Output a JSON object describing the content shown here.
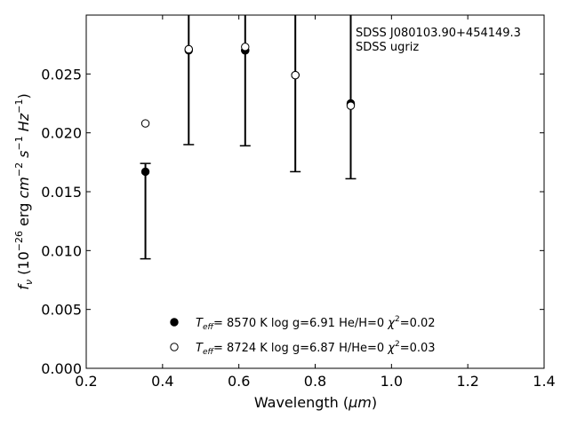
{
  "chart_data": {
    "type": "scatter",
    "xlabel": "Wavelength (μm)",
    "ylabel": "f_ν (10^-26 erg cm^-2 s^-1 Hz^-1)",
    "xlim": [
      0.2,
      1.4
    ],
    "ylim": [
      0.0,
      0.03
    ],
    "xticks": [
      "0.2",
      "0.4",
      "0.6",
      "0.8",
      "1.0",
      "1.2",
      "1.4"
    ],
    "yticks": [
      "0.000",
      "0.005",
      "0.010",
      "0.015",
      "0.020",
      "0.025"
    ],
    "annotation": [
      "SDSS J080103.90+454149.3",
      "SDSS ugriz"
    ],
    "grid": false,
    "legend_position": "lower-center",
    "observed": {
      "x": [
        0.3551,
        0.4686,
        0.6166,
        0.748,
        0.8932
      ],
      "y": [
        0.0167,
        0.0271,
        0.027,
        0.0249,
        0.0225
      ],
      "err_low": [
        0.0093,
        0.019,
        0.0189,
        0.0167,
        0.0161
      ],
      "err_high": [
        0.0174,
        0.05,
        0.05,
        0.05,
        0.05
      ]
    },
    "series": [
      {
        "marker": "filled-circle",
        "label": {
          "teff": "T",
          "teff_sub": "eff",
          "text": "=  8570 K  log g=6.91  He/H=0  ",
          "chi": "χ",
          "chi_val": "=0.02"
        },
        "x": [
          0.4686,
          0.6166,
          0.748,
          0.8932
        ],
        "y": [
          0.027,
          0.027,
          0.0249,
          0.0224
        ]
      },
      {
        "marker": "open-circle",
        "label": {
          "teff": "T",
          "teff_sub": "eff",
          "text": "=  8724 K  log g=6.87  H/He=0  ",
          "chi": "χ",
          "chi_val": "=0.03"
        },
        "x": [
          0.3551,
          0.4686,
          0.6166,
          0.748,
          0.8932
        ],
        "y": [
          0.0208,
          0.0271,
          0.0273,
          0.0249,
          0.0223
        ]
      }
    ],
    "axis_label_parts": {
      "x_prefix": "Wavelength (",
      "x_unit": "μm",
      "x_suffix": ")",
      "y_f": "f",
      "y_nu": "ν",
      "y_open": " (10",
      "y_exp1": "−26",
      "y_erg": " erg ",
      "y_cm": "cm",
      "y_exp2": "−2",
      "y_s": " s",
      "y_exp3": "−1",
      "y_hz": " Hz",
      "y_exp4": "−1",
      "y_close": ")"
    }
  }
}
